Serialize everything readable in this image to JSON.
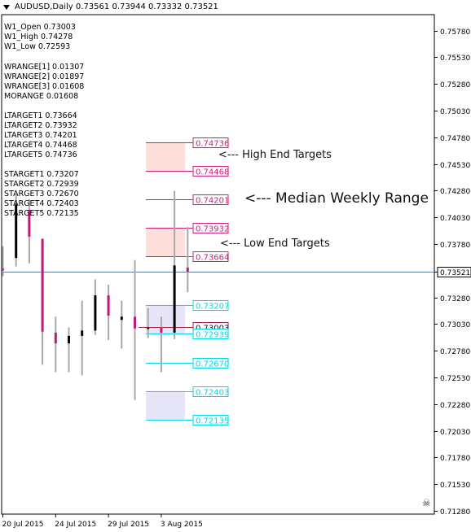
{
  "window": {
    "title": "AUDUSD,Daily",
    "ohlc": [
      "0.73561",
      "0.73944",
      "0.73332",
      "0.73521"
    ]
  },
  "info_lines": {
    "weekly": [
      "W1_Open 0.73003",
      "W1_High 0.74278",
      "W1_Low 0.72593"
    ],
    "ranges": [
      "WRANGE[1] 0.01307",
      "WRANGE[2] 0.01897",
      "WRANGE[3] 0.01608",
      "MORANGE 0.01608"
    ],
    "ltargets": [
      "LTARGET1 0.73664",
      "LTARGET2 0.73932",
      "LTARGET3 0.74201",
      "LTARGET4 0.74468",
      "LTARGET5 0.74736"
    ],
    "stargets": [
      "STARGET1 0.73207",
      "STARGET2 0.72939",
      "STARGET3 0.72670",
      "STARGET4 0.72403",
      "STARGET5 0.72135"
    ]
  },
  "annotations": {
    "high_end": "<--- High End Targets",
    "median": "<--- Median Weekly Range",
    "low_end": "<--- Low End Targets"
  },
  "colors": {
    "bull": "#000000",
    "bear": "#c0187a",
    "wick": "#a8a8a8",
    "long_target": "#d0207a",
    "short_target": "#00d8e8",
    "long_zone": "#fde0dc",
    "short_zone": "#e6e6f8",
    "current_line": "#6080a0"
  },
  "chart_data": {
    "type": "candlestick",
    "symbol": "AUDUSD",
    "timeframe": "Daily",
    "current_price": 0.73521,
    "ylim": [
      0.7125,
      0.7593
    ],
    "y_ticks": [
      "0.75780",
      "0.75530",
      "0.75280",
      "0.75030",
      "0.74780",
      "0.74530",
      "0.74280",
      "0.74030",
      "0.73780",
      "0.73521",
      "0.73280",
      "0.73030",
      "0.72780",
      "0.72530",
      "0.72280",
      "0.72030",
      "0.71780",
      "0.71530",
      "0.71280"
    ],
    "x_labels": [
      {
        "label": "20 Jul 2015",
        "index": 0
      },
      {
        "label": "24 Jul 2015",
        "index": 4
      },
      {
        "label": "29 Jul 2015",
        "index": 8
      },
      {
        "label": "3 Aug 2015",
        "index": 12
      }
    ],
    "candles": [
      {
        "open": 0.7355,
        "high": 0.7376,
        "low": 0.7348,
        "close": 0.7355,
        "dir": "bear"
      },
      {
        "open": 0.7365,
        "high": 0.7424,
        "low": 0.7357,
        "close": 0.7415,
        "dir": "bull"
      },
      {
        "open": 0.741,
        "high": 0.742,
        "low": 0.736,
        "close": 0.7385,
        "dir": "bear"
      },
      {
        "open": 0.7383,
        "high": 0.7383,
        "low": 0.7265,
        "close": 0.7296,
        "dir": "bear"
      },
      {
        "open": 0.7295,
        "high": 0.731,
        "low": 0.7258,
        "close": 0.7285,
        "dir": "bear"
      },
      {
        "open": 0.7285,
        "high": 0.73,
        "low": 0.7258,
        "close": 0.7292,
        "dir": "bull"
      },
      {
        "open": 0.7292,
        "high": 0.7325,
        "low": 0.7255,
        "close": 0.7297,
        "dir": "bull"
      },
      {
        "open": 0.7297,
        "high": 0.7345,
        "low": 0.7293,
        "close": 0.733,
        "dir": "bull"
      },
      {
        "open": 0.733,
        "high": 0.734,
        "low": 0.7288,
        "close": 0.7311,
        "dir": "bear"
      },
      {
        "open": 0.731,
        "high": 0.7325,
        "low": 0.728,
        "close": 0.7307,
        "dir": "bull"
      },
      {
        "open": 0.731,
        "high": 0.7363,
        "low": 0.7232,
        "close": 0.7299,
        "dir": "bear"
      },
      {
        "open": 0.7299,
        "high": 0.7318,
        "low": 0.729,
        "close": 0.73,
        "dir": "bull"
      },
      {
        "open": 0.73,
        "high": 0.731,
        "low": 0.7258,
        "close": 0.7295,
        "dir": "bear"
      },
      {
        "open": 0.7295,
        "high": 0.7428,
        "low": 0.7289,
        "close": 0.7358,
        "dir": "bull"
      },
      {
        "open": 0.7356,
        "high": 0.7394,
        "low": 0.7333,
        "close": 0.7352,
        "dir": "bear"
      }
    ],
    "targets": [
      {
        "label": "0.74736",
        "value": 0.74736,
        "side": "long"
      },
      {
        "label": "0.74468",
        "value": 0.74468,
        "side": "long"
      },
      {
        "label": "0.74201",
        "value": 0.74201,
        "side": "median"
      },
      {
        "label": "0.73932",
        "value": 0.73932,
        "side": "long"
      },
      {
        "label": "0.73664",
        "value": 0.73664,
        "side": "long"
      },
      {
        "label": "0.73207",
        "value": 0.73207,
        "side": "short"
      },
      {
        "label": "0.73003",
        "value": 0.73003,
        "side": "open"
      },
      {
        "label": "0.72939",
        "value": 0.72939,
        "side": "short"
      },
      {
        "label": "0.72670",
        "value": 0.7267,
        "side": "short"
      },
      {
        "label": "0.72403",
        "value": 0.72403,
        "side": "short"
      },
      {
        "label": "0.72135",
        "value": 0.72135,
        "side": "short"
      }
    ],
    "zones": [
      {
        "from": 0.74468,
        "to": 0.74736,
        "side": "long"
      },
      {
        "from": 0.73664,
        "to": 0.73932,
        "side": "long"
      },
      {
        "from": 0.72939,
        "to": 0.73207,
        "side": "short"
      },
      {
        "from": 0.72135,
        "to": 0.72403,
        "side": "short"
      }
    ]
  }
}
